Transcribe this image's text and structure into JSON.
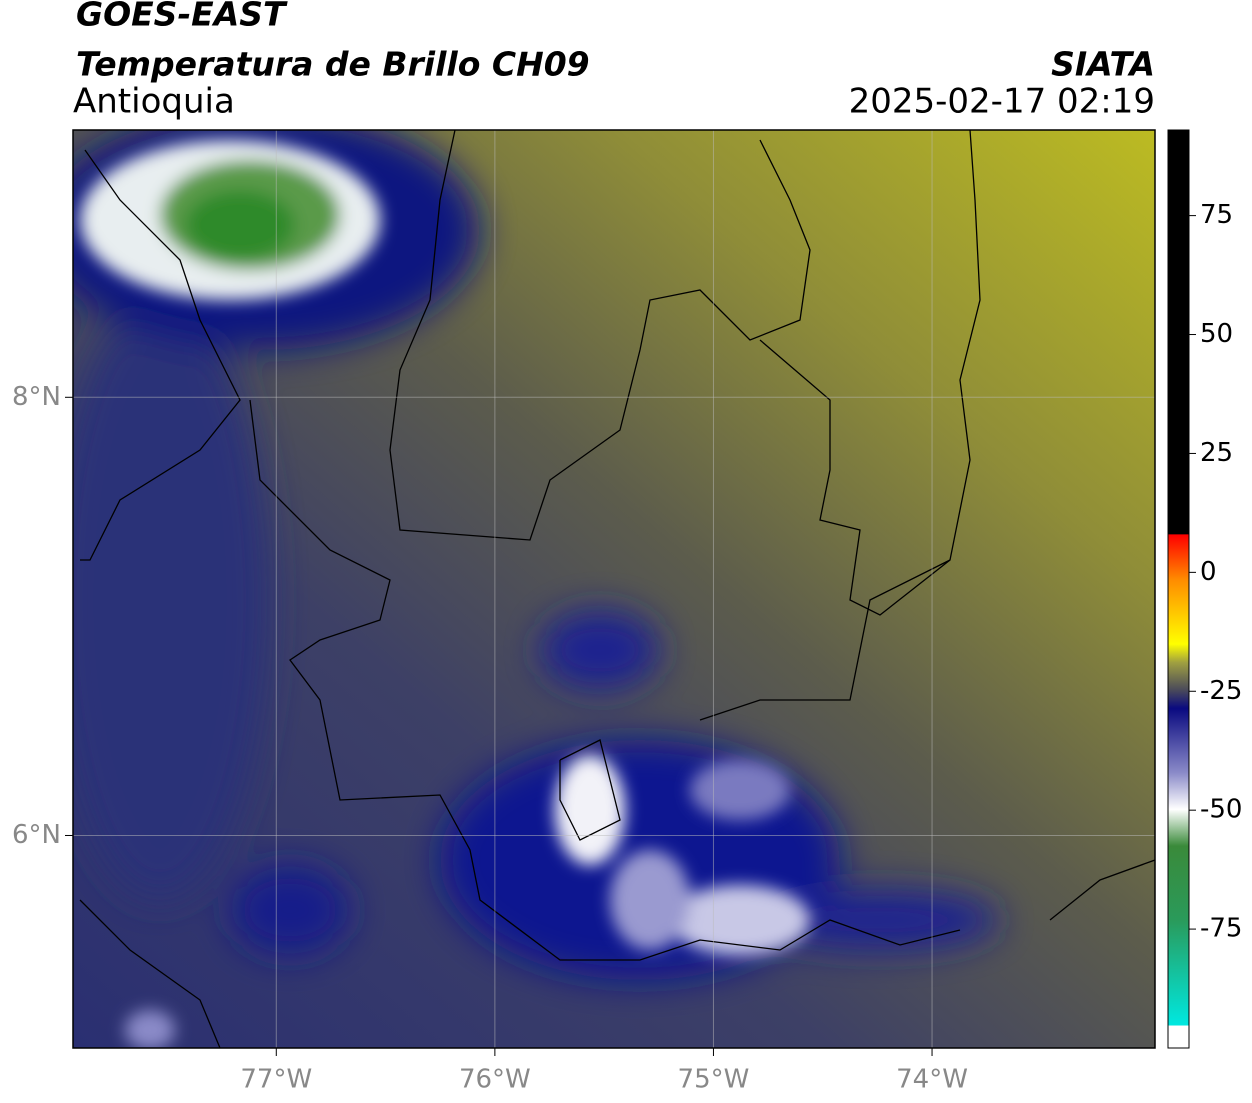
{
  "header": {
    "title": "GOES-EAST",
    "subtitle": "Temperatura de Brillo CH09",
    "region": "Antioquia",
    "source": "SIATA",
    "timestamp": "2025-02-17 02:19"
  },
  "chart_data": {
    "type": "map",
    "xlim": [
      -77.93,
      -72.98
    ],
    "ylim": [
      5.03,
      9.22
    ],
    "xticks": [
      {
        "value": -77,
        "label": "77°W"
      },
      {
        "value": -76,
        "label": "76°W"
      },
      {
        "value": -75,
        "label": "75°W"
      },
      {
        "value": -74,
        "label": "74°W"
      }
    ],
    "yticks": [
      {
        "value": 6,
        "label": "6°N"
      },
      {
        "value": 8,
        "label": "8°N"
      }
    ],
    "grid": true,
    "colorbar": {
      "clim": [
        -100,
        93
      ],
      "ticks": [
        -75,
        -50,
        -25,
        0,
        25,
        50,
        75
      ]
    }
  }
}
